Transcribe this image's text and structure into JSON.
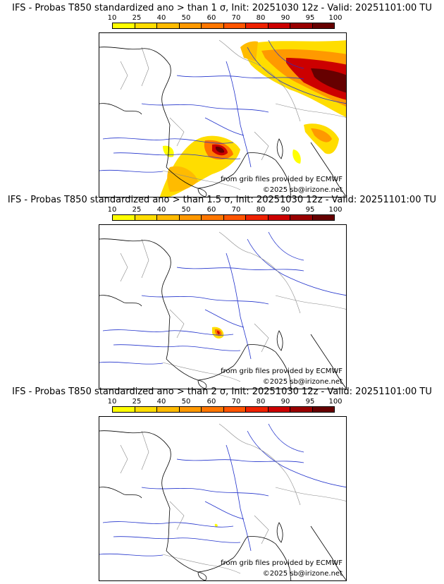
{
  "colors": {
    "scale": [
      "#ffff00",
      "#ffdd00",
      "#ffbb00",
      "#ff9900",
      "#ff7700",
      "#ff5500",
      "#ee2200",
      "#cc0000",
      "#990000",
      "#660000"
    ],
    "river": "#2233cc",
    "border": "#888888",
    "coast": "#000000"
  },
  "scale_labels": [
    "10",
    "25",
    "40",
    "50",
    "60",
    "70",
    "80",
    "90",
    "95",
    "100"
  ],
  "panels": [
    {
      "title": "IFS - Probas T850  standardized ano > than 1 σ, Init: 20251030 12z - Valid: 20251101:00 TU",
      "credit_source": "from grib files provided by ECMWF",
      "credit_copyright": "©2025 sb@irizone.net"
    },
    {
      "title": "IFS - Probas T850  standardized ano > than 1.5 σ, Init: 20251030 12z - Valid: 20251101:00 TU",
      "credit_source": "from grib files provided by ECMWF",
      "credit_copyright": "©2025 sb@irizone.net"
    },
    {
      "title": "IFS - Probas T850  standardized ano > than 2 σ, Init: 20251030 12z - Valid: 20251101:00 TU",
      "credit_source": "from grib files provided by ECMWF",
      "credit_copyright": "©2025 sb@irizone.net"
    }
  ]
}
